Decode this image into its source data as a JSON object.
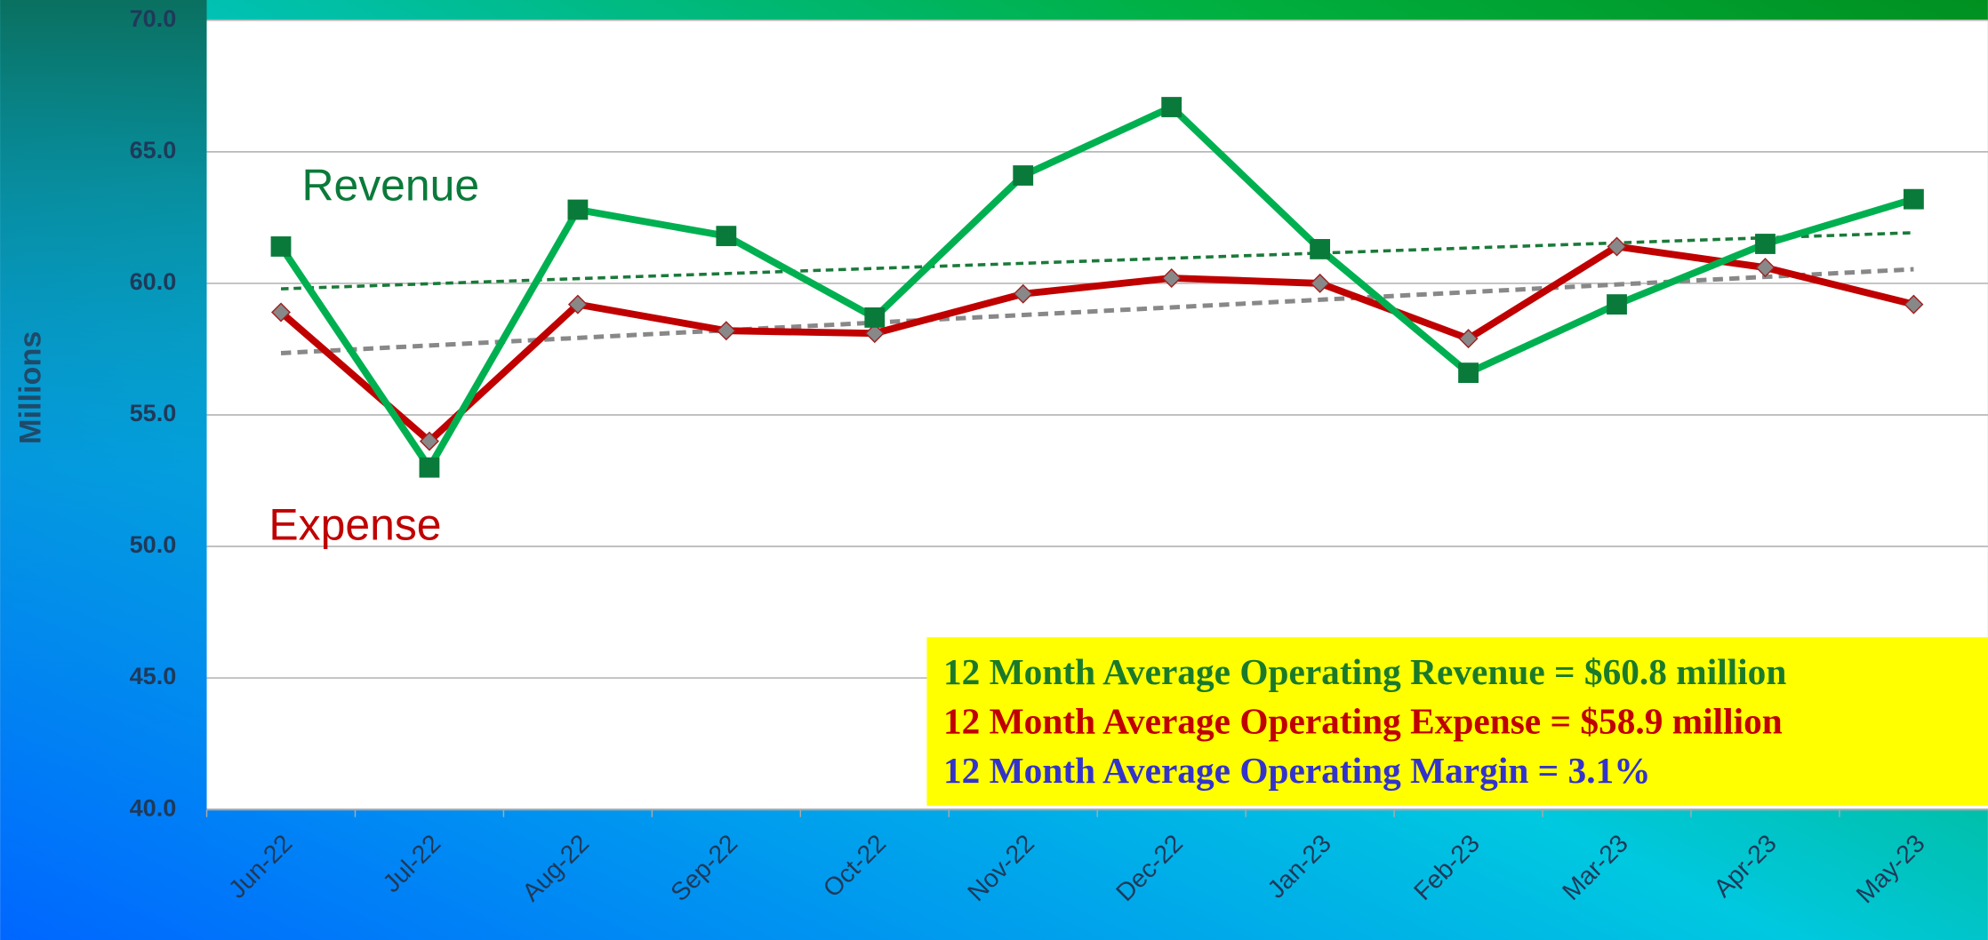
{
  "chart_data": {
    "type": "line",
    "y_label": "Millions",
    "categories": [
      "Jun-22",
      "Jul-22",
      "Aug-22",
      "Sep-22",
      "Oct-22",
      "Nov-22",
      "Dec-22",
      "Jan-23",
      "Feb-23",
      "Mar-23",
      "Apr-23",
      "May-23"
    ],
    "series": [
      {
        "name": "Revenue",
        "color": "#00b050",
        "values": [
          61.4,
          53.0,
          62.8,
          61.8,
          58.7,
          64.1,
          66.7,
          61.3,
          56.6,
          59.2,
          61.5,
          63.2
        ]
      },
      {
        "name": "Expense",
        "color": "#c00000",
        "values": [
          58.9,
          54.0,
          59.2,
          58.2,
          58.1,
          59.6,
          60.2,
          60.0,
          57.9,
          61.4,
          60.6,
          59.2
        ]
      }
    ],
    "ylim": [
      40,
      70
    ],
    "yticks": [
      {
        "value": 40,
        "label": "40.0"
      },
      {
        "value": 45,
        "label": "45.0"
      },
      {
        "value": 50,
        "label": "50.0"
      },
      {
        "value": 55,
        "label": "55.0"
      },
      {
        "value": 60,
        "label": "60.0"
      },
      {
        "value": 65,
        "label": "65.0"
      },
      {
        "value": 70,
        "label": "70.0"
      }
    ],
    "grid": true,
    "annotations": [
      "12 Month Average Operating Revenue = $60.8 million",
      "12 Month Average Operating Expense =  $58.9 million",
      "12 Month Average Operating Margin =   3.1%"
    ]
  }
}
